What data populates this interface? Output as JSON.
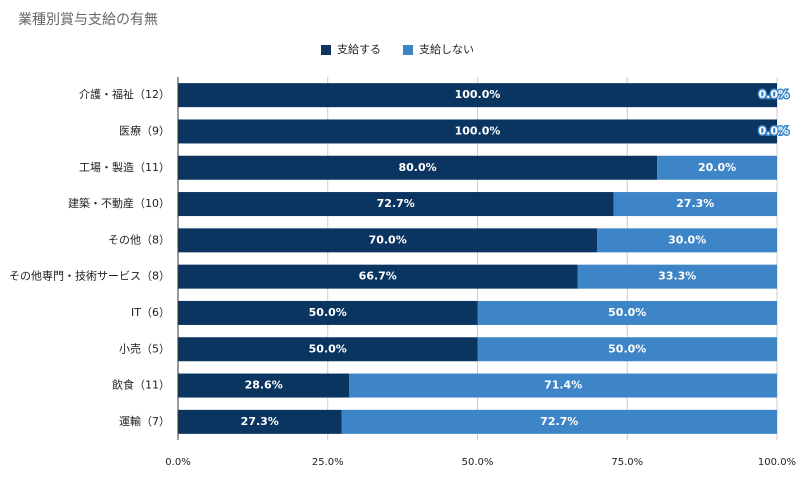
{
  "chart_data": {
    "type": "stacked-barh",
    "title": "業種別賞与支給の有無",
    "categories": [
      "介護・福祉（12）",
      "医療（9）",
      "工場・製造（11）",
      "建築・不動産（10）",
      "その他（8）",
      "その他専門・技術サービス（8）",
      "IT（6）",
      "小売（5）",
      "飲食（11）",
      "運輸（7）"
    ],
    "series": [
      {
        "name": "支給する",
        "color": "#0b3561",
        "values": [
          100,
          100,
          80,
          72.7,
          70,
          66.7,
          50,
          50,
          28.6,
          27.3
        ],
        "value_labels": [
          "100.0%",
          "100.0%",
          "80.0%",
          "72.7%",
          "70.0%",
          "66.7%",
          "50.0%",
          "50.0%",
          "28.6%",
          "27.3%"
        ]
      },
      {
        "name": "支給しない",
        "color": "#3d85c6",
        "values": [
          0,
          0,
          20,
          27.3,
          30,
          33.3,
          50,
          50,
          71.4,
          72.7
        ],
        "value_labels": [
          "0.0%",
          "0.0%",
          "20.0%",
          "27.3%",
          "30.0%",
          "33.3%",
          "50.0%",
          "50.0%",
          "71.4%",
          "72.7%"
        ]
      }
    ],
    "xlim": [
      0,
      100
    ],
    "xticks": [
      {
        "value": 0,
        "label": "0.0%"
      },
      {
        "value": 25,
        "label": "25.0%"
      },
      {
        "value": 50,
        "label": "50.0%"
      },
      {
        "value": 75,
        "label": "75.0%"
      },
      {
        "value": 100,
        "label": "100.0%"
      }
    ],
    "grid": true
  }
}
